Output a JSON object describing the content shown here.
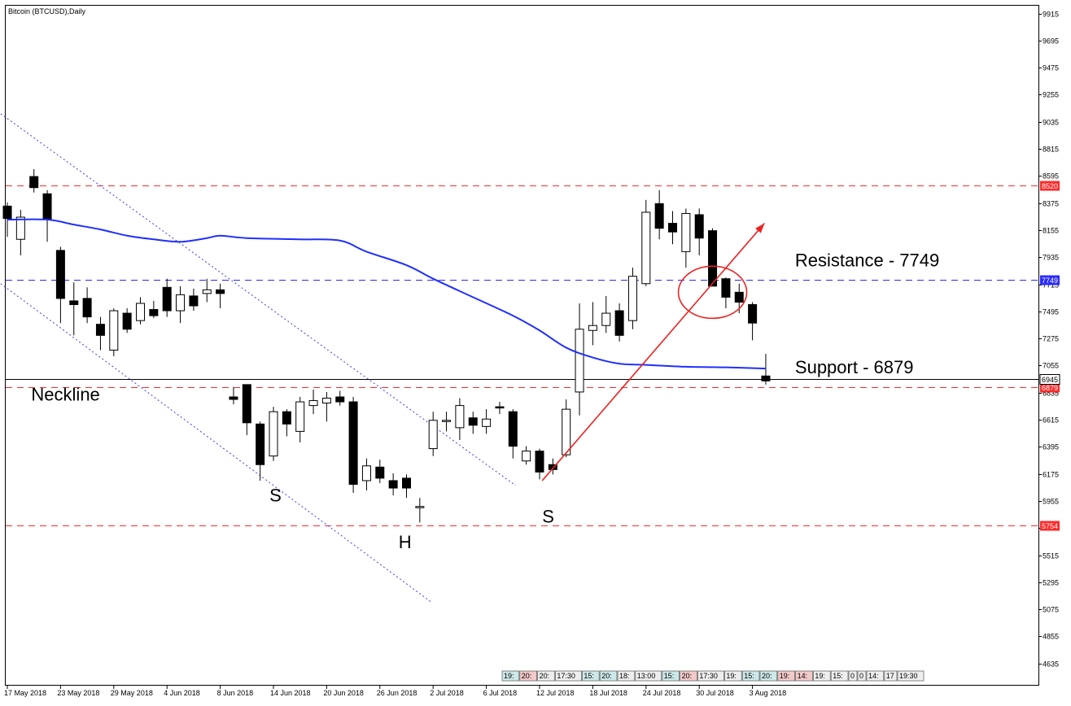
{
  "header": {
    "title": "Bitcoin (BTCUSD),Daily"
  },
  "chart_data": {
    "type": "candlestick",
    "symbol": "Bitcoin (BTCUSD)",
    "timeframe": "Daily",
    "ylim": [
      4525,
      9985
    ],
    "y_ticks": [
      9915,
      9695,
      9475,
      9255,
      9035,
      8815,
      8595,
      8375,
      8155,
      7935,
      7715,
      7495,
      7275,
      7055,
      6835,
      6615,
      6395,
      6175,
      5955,
      5735,
      5515,
      5295,
      5075,
      4855,
      4635
    ],
    "x_ticks": [
      {
        "label": "17 May 2018",
        "index": 0
      },
      {
        "label": "23 May 2018",
        "index": 4
      },
      {
        "label": "29 May 2018",
        "index": 8
      },
      {
        "label": "4 Jun 2018",
        "index": 12
      },
      {
        "label": "8 Jun 2018",
        "index": 16
      },
      {
        "label": "14 Jun 2018",
        "index": 20
      },
      {
        "label": "20 Jun 2018",
        "index": 24
      },
      {
        "label": "26 Jun 2018",
        "index": 28
      },
      {
        "label": "2 Jul 2018",
        "index": 32
      },
      {
        "label": "6 Jul 2018",
        "index": 36
      },
      {
        "label": "12 Jul 2018",
        "index": 40
      },
      {
        "label": "18 Jul 2018",
        "index": 44
      },
      {
        "label": "24 Jul 2018",
        "index": 48
      },
      {
        "label": "30 Jul 2018",
        "index": 52
      },
      {
        "label": "3 Aug 2018",
        "index": 56
      }
    ],
    "candles": [
      {
        "o": 8350,
        "h": 8380,
        "l": 8100,
        "c": 8250
      },
      {
        "o": 8080,
        "h": 8320,
        "l": 7950,
        "c": 8260
      },
      {
        "o": 8590,
        "h": 8650,
        "l": 8460,
        "c": 8500
      },
      {
        "o": 8450,
        "h": 8480,
        "l": 8060,
        "c": 8240
      },
      {
        "o": 7990,
        "h": 8020,
        "l": 7400,
        "c": 7600
      },
      {
        "o": 7580,
        "h": 7730,
        "l": 7300,
        "c": 7550
      },
      {
        "o": 7600,
        "h": 7690,
        "l": 7400,
        "c": 7450
      },
      {
        "o": 7390,
        "h": 7450,
        "l": 7180,
        "c": 7300
      },
      {
        "o": 7180,
        "h": 7520,
        "l": 7130,
        "c": 7500
      },
      {
        "o": 7480,
        "h": 7520,
        "l": 7320,
        "c": 7350
      },
      {
        "o": 7420,
        "h": 7610,
        "l": 7390,
        "c": 7560
      },
      {
        "o": 7510,
        "h": 7580,
        "l": 7440,
        "c": 7460
      },
      {
        "o": 7690,
        "h": 7760,
        "l": 7450,
        "c": 7500
      },
      {
        "o": 7500,
        "h": 7700,
        "l": 7400,
        "c": 7630
      },
      {
        "o": 7620,
        "h": 7680,
        "l": 7500,
        "c": 7540
      },
      {
        "o": 7640,
        "h": 7760,
        "l": 7570,
        "c": 7670
      },
      {
        "o": 7670,
        "h": 7720,
        "l": 7520,
        "c": 7640
      },
      {
        "o": 6800,
        "h": 6880,
        "l": 6740,
        "c": 6780
      },
      {
        "o": 6900,
        "h": 6900,
        "l": 6490,
        "c": 6590
      },
      {
        "o": 6580,
        "h": 6600,
        "l": 6120,
        "c": 6250
      },
      {
        "o": 6320,
        "h": 6720,
        "l": 6280,
        "c": 6680
      },
      {
        "o": 6680,
        "h": 6700,
        "l": 6480,
        "c": 6580
      },
      {
        "o": 6520,
        "h": 6800,
        "l": 6430,
        "c": 6760
      },
      {
        "o": 6730,
        "h": 6860,
        "l": 6660,
        "c": 6770
      },
      {
        "o": 6750,
        "h": 6840,
        "l": 6600,
        "c": 6790
      },
      {
        "o": 6800,
        "h": 6850,
        "l": 6730,
        "c": 6760
      },
      {
        "o": 6760,
        "h": 6800,
        "l": 6020,
        "c": 6090
      },
      {
        "o": 6120,
        "h": 6300,
        "l": 6040,
        "c": 6240
      },
      {
        "o": 6230,
        "h": 6290,
        "l": 6100,
        "c": 6140
      },
      {
        "o": 6120,
        "h": 6180,
        "l": 6000,
        "c": 6060
      },
      {
        "o": 6140,
        "h": 6170,
        "l": 5980,
        "c": 6060
      },
      {
        "o": 5900,
        "h": 5980,
        "l": 5780,
        "c": 5910
      },
      {
        "o": 6380,
        "h": 6680,
        "l": 6320,
        "c": 6610
      },
      {
        "o": 6600,
        "h": 6680,
        "l": 6520,
        "c": 6610
      },
      {
        "o": 6550,
        "h": 6790,
        "l": 6450,
        "c": 6730
      },
      {
        "o": 6630,
        "h": 6680,
        "l": 6500,
        "c": 6570
      },
      {
        "o": 6560,
        "h": 6700,
        "l": 6500,
        "c": 6620
      },
      {
        "o": 6720,
        "h": 6760,
        "l": 6660,
        "c": 6710
      },
      {
        "o": 6680,
        "h": 6700,
        "l": 6300,
        "c": 6400
      },
      {
        "o": 6280,
        "h": 6400,
        "l": 6250,
        "c": 6360
      },
      {
        "o": 6360,
        "h": 6380,
        "l": 6130,
        "c": 6190
      },
      {
        "o": 6250,
        "h": 6300,
        "l": 6170,
        "c": 6210
      },
      {
        "o": 6330,
        "h": 6780,
        "l": 6310,
        "c": 6700
      },
      {
        "o": 6840,
        "h": 7560,
        "l": 6650,
        "c": 7350
      },
      {
        "o": 7340,
        "h": 7570,
        "l": 7220,
        "c": 7380
      },
      {
        "o": 7380,
        "h": 7620,
        "l": 7320,
        "c": 7480
      },
      {
        "o": 7500,
        "h": 7560,
        "l": 7250,
        "c": 7300
      },
      {
        "o": 7420,
        "h": 7850,
        "l": 7350,
        "c": 7780
      },
      {
        "o": 7720,
        "h": 8400,
        "l": 7700,
        "c": 8300
      },
      {
        "o": 8370,
        "h": 8480,
        "l": 8080,
        "c": 8170
      },
      {
        "o": 8210,
        "h": 8310,
        "l": 8040,
        "c": 8140
      },
      {
        "o": 7980,
        "h": 8330,
        "l": 7850,
        "c": 8290
      },
      {
        "o": 8280,
        "h": 8330,
        "l": 7950,
        "c": 8090
      },
      {
        "o": 8150,
        "h": 8170,
        "l": 7700,
        "c": 7700
      },
      {
        "o": 7760,
        "h": 7770,
        "l": 7520,
        "c": 7610
      },
      {
        "o": 7650,
        "h": 7720,
        "l": 7480,
        "c": 7570
      },
      {
        "o": 7550,
        "h": 7570,
        "l": 7260,
        "c": 7400
      },
      {
        "o": 6970,
        "h": 7150,
        "l": 6900,
        "c": 6930
      }
    ],
    "moving_average": [
      {
        "i": 0,
        "v": 8240
      },
      {
        "i": 3,
        "v": 8240
      },
      {
        "i": 5,
        "v": 8200
      },
      {
        "i": 7,
        "v": 8160
      },
      {
        "i": 9,
        "v": 8110
      },
      {
        "i": 11,
        "v": 8080
      },
      {
        "i": 13,
        "v": 8060
      },
      {
        "i": 15,
        "v": 8090
      },
      {
        "i": 16,
        "v": 8110
      },
      {
        "i": 18,
        "v": 8090
      },
      {
        "i": 22,
        "v": 8080
      },
      {
        "i": 25,
        "v": 8070
      },
      {
        "i": 27,
        "v": 7980
      },
      {
        "i": 30,
        "v": 7870
      },
      {
        "i": 32,
        "v": 7760
      },
      {
        "i": 35,
        "v": 7610
      },
      {
        "i": 38,
        "v": 7460
      },
      {
        "i": 40,
        "v": 7340
      },
      {
        "i": 42,
        "v": 7200
      },
      {
        "i": 44,
        "v": 7120
      },
      {
        "i": 46,
        "v": 7070
      },
      {
        "i": 48,
        "v": 7060
      },
      {
        "i": 51,
        "v": 7045
      },
      {
        "i": 54,
        "v": 7040
      },
      {
        "i": 57,
        "v": 7030
      }
    ],
    "moving_average_color": "#1f2fff",
    "bull_color": "#ffffff",
    "bear_color": "#000000",
    "current_price": 6945,
    "horizontal_lines": [
      {
        "value": 8520,
        "style": "dashed",
        "color": "#ff2a2a",
        "label": "8520"
      },
      {
        "value": 7749,
        "style": "dashed",
        "color": "#2a2aff",
        "label": "7749"
      },
      {
        "value": 6879,
        "style": "dashed",
        "color": "#ff2a2a",
        "label": "6879"
      },
      {
        "value": 5754,
        "style": "dashed",
        "color": "#ff2a2a",
        "label": "5754"
      },
      {
        "value": 6945,
        "style": "solid",
        "color": "#000000",
        "label": "6945"
      }
    ],
    "trend_channel": [
      {
        "from": {
          "i": -0.5,
          "v": 9100
        },
        "to": {
          "i": 38.2,
          "v": 6080
        }
      },
      {
        "from": {
          "i": -0.5,
          "v": 7720
        },
        "to": {
          "i": 31.9,
          "v": 5130
        }
      }
    ],
    "trend_channel_color": "#3a3aff",
    "arrow": {
      "from": {
        "i": 40.2,
        "v": 6120
      },
      "to": {
        "i": 56.9,
        "v": 8210
      },
      "color": "#ee2222"
    },
    "circle": {
      "i": 53.0,
      "v": 7650,
      "color": "#ee2222"
    },
    "annotations": [
      {
        "text": "Resistance - 7749",
        "i": 59.2,
        "v": 7860,
        "size": 22
      },
      {
        "text": "Support - 6879",
        "i": 59.2,
        "v": 6990,
        "size": 22
      },
      {
        "text": "Neckline",
        "i": 1.8,
        "v": 6770,
        "size": 22
      },
      {
        "text": "S",
        "i": 19.7,
        "v": 5950,
        "size": 22
      },
      {
        "text": "H",
        "i": 29.4,
        "v": 5570,
        "size": 22
      },
      {
        "text": "S",
        "i": 40.2,
        "v": 5780,
        "size": 22
      }
    ],
    "tick_overlays": [
      "6835",
      "6945",
      "6879"
    ]
  },
  "status_bar": {
    "items": [
      "19:",
      "20:",
      "20:",
      "17:30",
      "15:",
      "20:",
      "18:",
      "13:00",
      "15:",
      "20:",
      "17:30",
      "19:",
      "15:",
      "20:",
      "19:",
      "14:",
      "19:",
      "15:",
      "0",
      "0",
      "14:",
      "17",
      "19:30"
    ],
    "colors": [
      "#cde8e8",
      "#f3c9c9",
      "#eeeeee",
      "#eeeeee",
      "#cde8e8",
      "#cde8e8",
      "#eeeeee",
      "#eeeeee",
      "#cde8e8",
      "#f3c9c9",
      "#eeeeee",
      "#eeeeee",
      "#cde8e8",
      "#cde8e8",
      "#f3c9c9",
      "#f3c9c9",
      "#eeeeee",
      "#eeeeee",
      "#eeeeee",
      "#eeeeee",
      "#eeeeee",
      "#eeeeee",
      "#eeeeee"
    ]
  }
}
